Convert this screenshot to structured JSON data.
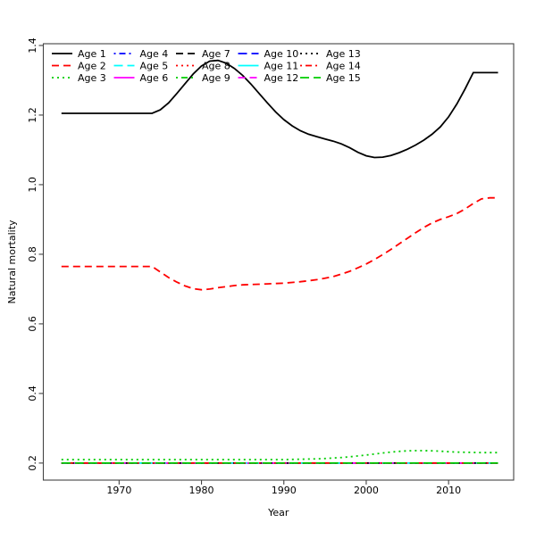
{
  "chart_data": {
    "type": "line",
    "title": "",
    "xlabel": "Year",
    "ylabel": "Natural mortality",
    "xlim": [
      1960.8,
      2017.9
    ],
    "ylim": [
      0.151,
      1.405
    ],
    "grid": false,
    "legend_position": "top-left",
    "legend_columns": 5,
    "x_ticks": [
      1970,
      1980,
      1990,
      2000,
      2010
    ],
    "x_tick_labels": [
      "1970",
      "1980",
      "1990",
      "2000",
      "2010"
    ],
    "y_ticks": [
      0.2,
      0.4,
      0.6,
      0.8,
      1.0,
      1.2,
      1.4
    ],
    "y_tick_labels": [
      "0.2",
      "0.4",
      "0.6",
      "0.8",
      "1.0",
      "1.2",
      "1.4"
    ],
    "x": [
      1963,
      1964,
      1965,
      1966,
      1967,
      1968,
      1969,
      1970,
      1971,
      1972,
      1973,
      1974,
      1975,
      1976,
      1977,
      1978,
      1979,
      1980,
      1981,
      1982,
      1983,
      1984,
      1985,
      1986,
      1987,
      1988,
      1989,
      1990,
      1991,
      1992,
      1993,
      1994,
      1995,
      1996,
      1997,
      1998,
      1999,
      2000,
      2001,
      2002,
      2003,
      2004,
      2005,
      2006,
      2007,
      2008,
      2009,
      2010,
      2011,
      2012,
      2013,
      2014,
      2015,
      2016
    ],
    "series": [
      {
        "name": "Age 1",
        "color": "#000000",
        "lty": "solid",
        "values": [
          1.205,
          1.205,
          1.205,
          1.205,
          1.205,
          1.205,
          1.205,
          1.205,
          1.205,
          1.205,
          1.205,
          1.205,
          1.215,
          1.235,
          1.262,
          1.29,
          1.318,
          1.341,
          1.355,
          1.357,
          1.349,
          1.334,
          1.314,
          1.289,
          1.262,
          1.235,
          1.209,
          1.187,
          1.169,
          1.155,
          1.145,
          1.138,
          1.131,
          1.125,
          1.117,
          1.106,
          1.093,
          1.083,
          1.078,
          1.079,
          1.084,
          1.092,
          1.102,
          1.114,
          1.128,
          1.145,
          1.166,
          1.195,
          1.232,
          1.275,
          1.322,
          1.322,
          1.322,
          1.322
        ]
      },
      {
        "name": "Age 2",
        "color": "#FF0000",
        "lty": "dashed",
        "values": [
          0.765,
          0.765,
          0.765,
          0.765,
          0.765,
          0.765,
          0.765,
          0.765,
          0.765,
          0.765,
          0.765,
          0.765,
          0.749,
          0.733,
          0.72,
          0.709,
          0.701,
          0.698,
          0.7,
          0.704,
          0.707,
          0.71,
          0.712,
          0.713,
          0.714,
          0.715,
          0.716,
          0.717,
          0.719,
          0.721,
          0.724,
          0.727,
          0.731,
          0.736,
          0.743,
          0.751,
          0.761,
          0.772,
          0.785,
          0.799,
          0.814,
          0.83,
          0.846,
          0.862,
          0.877,
          0.89,
          0.9,
          0.908,
          0.917,
          0.93,
          0.946,
          0.959,
          0.962,
          0.962
        ]
      },
      {
        "name": "Age 3",
        "color": "#00CD00",
        "lty": "dotted",
        "values": [
          0.21,
          0.21,
          0.21,
          0.21,
          0.21,
          0.21,
          0.21,
          0.21,
          0.21,
          0.21,
          0.21,
          0.21,
          0.21,
          0.21,
          0.21,
          0.21,
          0.21,
          0.21,
          0.21,
          0.21,
          0.21,
          0.21,
          0.21,
          0.21,
          0.21,
          0.21,
          0.21,
          0.21,
          0.2105,
          0.211,
          0.2115,
          0.212,
          0.213,
          0.2145,
          0.216,
          0.218,
          0.2205,
          0.223,
          0.226,
          0.229,
          0.2315,
          0.2335,
          0.235,
          0.2355,
          0.2355,
          0.235,
          0.234,
          0.2325,
          0.2315,
          0.231,
          0.2305,
          0.23,
          0.23,
          0.23
        ]
      },
      {
        "name": "Age 4",
        "color": "#0000FF",
        "lty": "dotdash",
        "constant": 0.2
      },
      {
        "name": "Age 5",
        "color": "#00FFFF",
        "lty": "longdash",
        "constant": 0.2
      },
      {
        "name": "Age 6",
        "color": "#FF00FF",
        "lty": "solid",
        "constant": 0.2
      },
      {
        "name": "Age 7",
        "color": "#000000",
        "lty": "dashed",
        "constant": 0.2
      },
      {
        "name": "Age 8",
        "color": "#FF0000",
        "lty": "dotted",
        "constant": 0.2
      },
      {
        "name": "Age 9",
        "color": "#00CD00",
        "lty": "dotdash",
        "constant": 0.2
      },
      {
        "name": "Age 10",
        "color": "#0000FF",
        "lty": "longdash",
        "constant": 0.2
      },
      {
        "name": "Age 11",
        "color": "#00FFFF",
        "lty": "solid",
        "constant": 0.2
      },
      {
        "name": "Age 12",
        "color": "#FF00FF",
        "lty": "dashed",
        "constant": 0.2
      },
      {
        "name": "Age 13",
        "color": "#000000",
        "lty": "dotted",
        "constant": 0.2
      },
      {
        "name": "Age 14",
        "color": "#FF0000",
        "lty": "dotdash",
        "constant": 0.2
      },
      {
        "name": "Age 15",
        "color": "#00CD00",
        "lty": "longdash",
        "constant": 0.2
      }
    ],
    "colors": {
      "axis": "#444444",
      "text": "#000000",
      "background": "#ffffff"
    }
  }
}
